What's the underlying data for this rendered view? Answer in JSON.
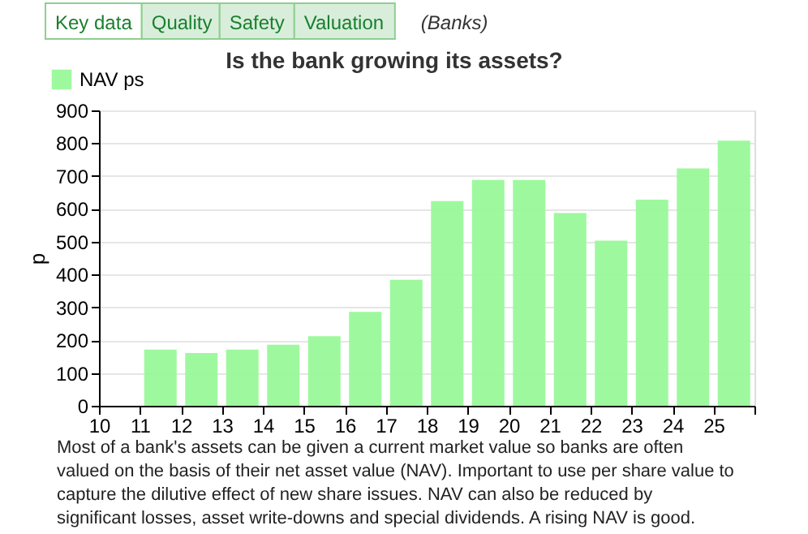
{
  "chart_data": {
    "type": "bar",
    "title": "Is the bank growing its assets?",
    "ylabel": "p",
    "x": [
      11.5,
      12.5,
      13.5,
      14.5,
      15.5,
      16.5,
      17.5,
      18.5,
      19.5,
      20.5,
      21.5,
      22.5,
      23.5,
      24.5,
      25.5
    ],
    "series": [
      {
        "name": "NAV ps",
        "color": "#99f999",
        "values": [
          171,
          161,
          171,
          186,
          212,
          286,
          384,
          624,
          688,
          688,
          587,
          503,
          628,
          723,
          808
        ]
      }
    ],
    "xlim": [
      10,
      26
    ],
    "xticks": [
      10,
      11,
      12,
      13,
      14,
      15,
      16,
      17,
      18,
      19,
      20,
      21,
      22,
      23,
      24,
      25,
      {
        "value": 26,
        "label": null
      }
    ],
    "ylim": [
      0,
      900
    ],
    "yticks": [
      0,
      100,
      200,
      300,
      400,
      500,
      600,
      700,
      800,
      900
    ],
    "grid": "y",
    "legend": "top left",
    "annotations": [
      "Key data",
      "Quality",
      "Safety",
      "Valuation",
      "(Banks)",
      "Most of a bank's assets can be given a current market value so banks are often valued on the basis of their net asset value (NAV). Important to use per share value to capture the dilutive effect of new share issues. NAV can also be reduced by significant losses, asset write-downs and special dividends. A rising NAV is good."
    ]
  }
}
